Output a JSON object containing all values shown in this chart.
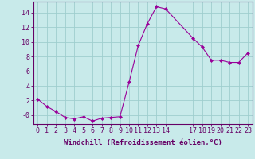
{
  "x": [
    0,
    1,
    2,
    3,
    4,
    5,
    6,
    7,
    8,
    9,
    10,
    11,
    12,
    13,
    14,
    17,
    18,
    19,
    20,
    21,
    22,
    23
  ],
  "y": [
    2.2,
    1.2,
    0.5,
    -0.3,
    -0.5,
    -0.2,
    -0.8,
    -0.4,
    -0.3,
    -0.2,
    4.5,
    9.5,
    12.5,
    14.8,
    14.5,
    10.5,
    9.3,
    7.5,
    7.5,
    7.2,
    7.2,
    8.5
  ],
  "line_color": "#990099",
  "marker_color": "#990099",
  "bg_color": "#c8eaea",
  "grid_color": "#9fcece",
  "axis_color": "#660066",
  "tick_color": "#660066",
  "xlabel": "Windchill (Refroidissement éolien,°C)",
  "xticks": [
    0,
    1,
    2,
    3,
    4,
    5,
    6,
    7,
    8,
    9,
    10,
    11,
    12,
    13,
    14,
    17,
    18,
    19,
    20,
    21,
    22,
    23
  ],
  "ytick_labels": [
    "-0",
    "2",
    "4",
    "6",
    "8",
    "10",
    "12",
    "14"
  ],
  "ytick_vals": [
    0,
    2,
    4,
    6,
    8,
    10,
    12,
    14
  ],
  "ylim": [
    -1.2,
    15.5
  ],
  "xlim": [
    -0.5,
    23.5
  ],
  "font_size": 6.0,
  "xlabel_size": 6.5
}
